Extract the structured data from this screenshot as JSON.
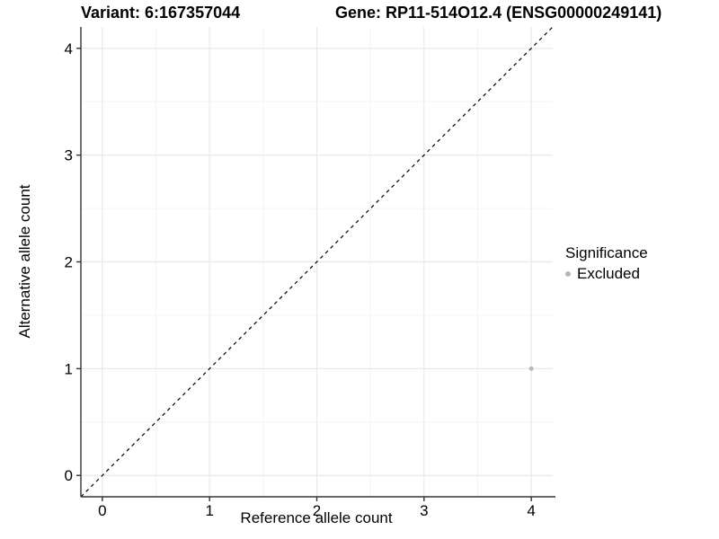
{
  "figure": {
    "title_variant": "Variant: 6:167357044",
    "title_gene": "Gene: RP11-514O12.4 (ENSG00000249141)"
  },
  "chart_data": {
    "type": "scatter",
    "title": "Variant: 6:167357044   Gene: RP11-514O12.4 (ENSG00000249141)",
    "xlabel": "Reference allele count",
    "ylabel": "Alternative allele count",
    "xlim": [
      -0.2,
      4.2
    ],
    "ylim": [
      -0.2,
      4.2
    ],
    "x_ticks": [
      0,
      1,
      2,
      3,
      4
    ],
    "y_ticks": [
      0,
      1,
      2,
      3,
      4
    ],
    "minor_grid_x": [
      0.5,
      1.5,
      2.5,
      3.5
    ],
    "minor_grid_y": [
      0.5,
      1.5,
      2.5,
      3.5
    ],
    "grid": "major and minor gridlines on, light grey",
    "reference_line": {
      "note": "identity line y = x",
      "style": "dashed",
      "from": [
        -0.2,
        -0.2
      ],
      "to": [
        4.2,
        4.2
      ],
      "color": "#000000"
    },
    "series": [
      {
        "name": "Excluded",
        "color": "#b8b8b8",
        "point_radius": 2.5,
        "points": [
          [
            4,
            1
          ]
        ]
      }
    ],
    "legend": {
      "title": "Significance",
      "position": "right",
      "items": [
        {
          "label": "Excluded",
          "color": "#b8b8b8"
        }
      ]
    }
  },
  "style": {
    "axis_line_color": "#333333",
    "tick_color": "#333333",
    "major_grid_color": "#e9e9e9",
    "minor_grid_color": "#f4f4f4",
    "tick_label_color": "#000000",
    "background": "#ffffff"
  }
}
